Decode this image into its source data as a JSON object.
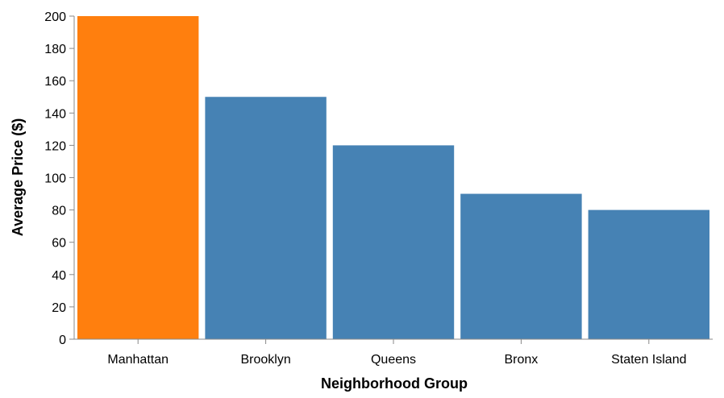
{
  "chart_data": {
    "type": "bar",
    "title": "",
    "xlabel": "Neighborhood Group",
    "ylabel": "Average Price ($)",
    "categories": [
      "Manhattan",
      "Brooklyn",
      "Queens",
      "Bronx",
      "Staten Island"
    ],
    "values": [
      200,
      150,
      120,
      90,
      80
    ],
    "ylim": [
      0,
      200
    ],
    "yticks": [
      0,
      20,
      40,
      60,
      80,
      100,
      120,
      140,
      160,
      180,
      200
    ],
    "grid": false,
    "legend": "none",
    "colors": {
      "highlight": "#ff7f0e",
      "default": "#4682b4"
    },
    "highlighted_category": "Manhattan"
  }
}
